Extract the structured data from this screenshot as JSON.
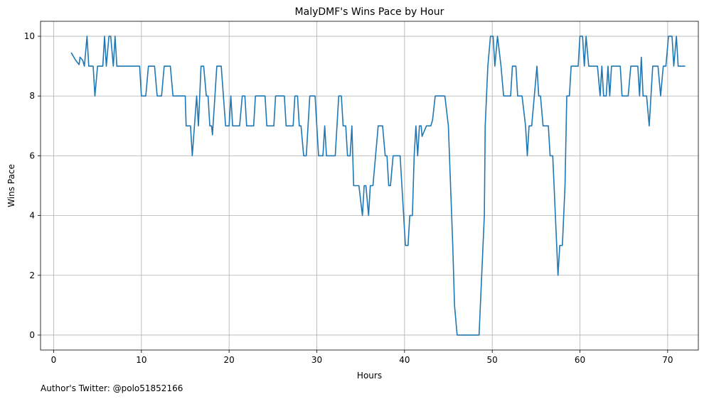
{
  "chart_data": {
    "type": "line",
    "title": "MalyDMF's Wins Pace by Hour",
    "xlabel": "Hours",
    "ylabel": "Wins Pace",
    "xlim": [
      -1.5,
      73.5
    ],
    "ylim": [
      -0.5,
      10.5
    ],
    "xticks": [
      0,
      10,
      20,
      30,
      40,
      50,
      60,
      70
    ],
    "yticks": [
      0,
      2,
      4,
      6,
      8,
      10
    ],
    "grid": true,
    "series": [
      {
        "color": "#1f77b4",
        "points": [
          [
            2.0,
            9.45
          ],
          [
            2.5,
            9.2
          ],
          [
            2.9,
            9.05
          ],
          [
            3.0,
            9.3
          ],
          [
            3.3,
            9.2
          ],
          [
            3.5,
            9.0
          ],
          [
            3.8,
            10.0
          ],
          [
            4.0,
            9.0
          ],
          [
            4.5,
            9.0
          ],
          [
            4.7,
            8.0
          ],
          [
            5.0,
            9.0
          ],
          [
            5.6,
            9.0
          ],
          [
            5.8,
            10.0
          ],
          [
            6.0,
            9.0
          ],
          [
            6.3,
            10.0
          ],
          [
            6.5,
            10.0
          ],
          [
            6.8,
            9.0
          ],
          [
            7.0,
            10.0
          ],
          [
            7.2,
            9.0
          ],
          [
            9.8,
            9.0
          ],
          [
            10.0,
            8.0
          ],
          [
            10.5,
            8.0
          ],
          [
            10.8,
            9.0
          ],
          [
            11.5,
            9.0
          ],
          [
            11.8,
            8.0
          ],
          [
            12.3,
            8.0
          ],
          [
            12.6,
            9.0
          ],
          [
            13.3,
            9.0
          ],
          [
            13.6,
            8.0
          ],
          [
            15.0,
            8.0
          ],
          [
            15.1,
            7.0
          ],
          [
            15.6,
            7.0
          ],
          [
            15.8,
            6.0
          ],
          [
            16.3,
            8.0
          ],
          [
            16.5,
            7.0
          ],
          [
            16.8,
            9.0
          ],
          [
            17.1,
            9.0
          ],
          [
            17.4,
            8.0
          ],
          [
            17.6,
            8.0
          ],
          [
            17.8,
            7.0
          ],
          [
            18.0,
            7.0
          ],
          [
            18.1,
            6.7
          ],
          [
            18.6,
            9.0
          ],
          [
            19.1,
            9.0
          ],
          [
            19.6,
            7.0
          ],
          [
            20.0,
            7.0
          ],
          [
            20.2,
            8.0
          ],
          [
            20.4,
            7.0
          ],
          [
            21.2,
            7.0
          ],
          [
            21.5,
            8.0
          ],
          [
            21.8,
            8.0
          ],
          [
            22.0,
            7.0
          ],
          [
            22.8,
            7.0
          ],
          [
            23.0,
            8.0
          ],
          [
            24.1,
            8.0
          ],
          [
            24.3,
            7.0
          ],
          [
            25.1,
            7.0
          ],
          [
            25.3,
            8.0
          ],
          [
            26.3,
            8.0
          ],
          [
            26.5,
            7.0
          ],
          [
            27.3,
            7.0
          ],
          [
            27.5,
            8.0
          ],
          [
            27.8,
            8.0
          ],
          [
            28.0,
            7.0
          ],
          [
            28.2,
            7.0
          ],
          [
            28.5,
            6.0
          ],
          [
            28.8,
            6.0
          ],
          [
            29.2,
            8.0
          ],
          [
            29.8,
            8.0
          ],
          [
            30.2,
            6.0
          ],
          [
            30.7,
            6.0
          ],
          [
            30.9,
            7.0
          ],
          [
            31.1,
            6.0
          ],
          [
            32.1,
            6.0
          ],
          [
            32.5,
            8.0
          ],
          [
            32.8,
            8.0
          ],
          [
            33.0,
            7.0
          ],
          [
            33.3,
            7.0
          ],
          [
            33.5,
            6.0
          ],
          [
            33.8,
            6.0
          ],
          [
            34.0,
            7.0
          ],
          [
            34.2,
            5.0
          ],
          [
            34.8,
            5.0
          ],
          [
            35.2,
            4.0
          ],
          [
            35.4,
            5.0
          ],
          [
            35.6,
            5.0
          ],
          [
            35.9,
            4.0
          ],
          [
            36.1,
            5.0
          ],
          [
            36.4,
            5.0
          ],
          [
            37.0,
            7.0
          ],
          [
            37.5,
            7.0
          ],
          [
            37.8,
            6.0
          ],
          [
            38.0,
            6.0
          ],
          [
            38.2,
            5.0
          ],
          [
            38.4,
            5.0
          ],
          [
            38.7,
            6.0
          ],
          [
            39.5,
            6.0
          ],
          [
            39.9,
            4.0
          ],
          [
            40.1,
            3.0
          ],
          [
            40.4,
            3.0
          ],
          [
            40.6,
            4.0
          ],
          [
            40.9,
            4.0
          ],
          [
            41.1,
            6.0
          ],
          [
            41.3,
            7.0
          ],
          [
            41.5,
            6.0
          ],
          [
            41.7,
            7.0
          ],
          [
            41.9,
            7.0
          ],
          [
            42.0,
            6.65
          ],
          [
            42.5,
            7.0
          ],
          [
            43.0,
            7.0
          ],
          [
            43.2,
            7.2
          ],
          [
            43.5,
            8.0
          ],
          [
            44.6,
            8.0
          ],
          [
            45.0,
            7.0
          ],
          [
            45.5,
            3.0
          ],
          [
            45.7,
            1.0
          ],
          [
            46.0,
            0.0
          ],
          [
            48.5,
            0.0
          ],
          [
            48.8,
            2.0
          ],
          [
            49.1,
            4.0
          ],
          [
            49.2,
            7.0
          ],
          [
            49.5,
            9.0
          ],
          [
            49.8,
            10.0
          ],
          [
            50.1,
            10.0
          ],
          [
            50.3,
            9.0
          ],
          [
            50.6,
            10.0
          ],
          [
            51.0,
            9.0
          ],
          [
            51.3,
            8.0
          ],
          [
            52.1,
            8.0
          ],
          [
            52.3,
            9.0
          ],
          [
            52.7,
            9.0
          ],
          [
            52.9,
            8.0
          ],
          [
            53.4,
            8.0
          ],
          [
            53.8,
            7.0
          ],
          [
            54.0,
            6.0
          ],
          [
            54.2,
            7.0
          ],
          [
            54.5,
            7.0
          ],
          [
            54.8,
            8.0
          ],
          [
            55.1,
            9.0
          ],
          [
            55.3,
            8.0
          ],
          [
            55.5,
            8.0
          ],
          [
            55.8,
            7.0
          ],
          [
            56.4,
            7.0
          ],
          [
            56.6,
            6.0
          ],
          [
            56.9,
            6.0
          ],
          [
            57.2,
            4.0
          ],
          [
            57.5,
            2.0
          ],
          [
            57.7,
            3.0
          ],
          [
            58.0,
            3.0
          ],
          [
            58.3,
            5.0
          ],
          [
            58.5,
            8.0
          ],
          [
            58.8,
            8.0
          ],
          [
            59.0,
            9.0
          ],
          [
            59.8,
            9.0
          ],
          [
            60.0,
            10.0
          ],
          [
            60.3,
            10.0
          ],
          [
            60.5,
            9.0
          ],
          [
            60.7,
            10.0
          ],
          [
            61.0,
            9.0
          ],
          [
            62.0,
            9.0
          ],
          [
            62.3,
            8.0
          ],
          [
            62.5,
            9.0
          ],
          [
            62.7,
            8.0
          ],
          [
            63.0,
            8.0
          ],
          [
            63.2,
            9.0
          ],
          [
            63.4,
            8.0
          ],
          [
            63.6,
            9.0
          ],
          [
            64.6,
            9.0
          ],
          [
            64.8,
            8.0
          ],
          [
            65.5,
            8.0
          ],
          [
            65.8,
            9.0
          ],
          [
            66.6,
            9.0
          ],
          [
            66.8,
            8.0
          ],
          [
            67.0,
            9.3
          ],
          [
            67.2,
            8.0
          ],
          [
            67.6,
            8.0
          ],
          [
            67.9,
            7.0
          ],
          [
            68.3,
            9.0
          ],
          [
            68.9,
            9.0
          ],
          [
            69.2,
            8.0
          ],
          [
            69.5,
            9.0
          ],
          [
            69.8,
            9.0
          ],
          [
            70.1,
            10.0
          ],
          [
            70.5,
            10.0
          ],
          [
            70.7,
            9.0
          ],
          [
            71.0,
            10.0
          ],
          [
            71.2,
            9.0
          ],
          [
            72.0,
            9.0
          ]
        ]
      }
    ]
  },
  "footnote": "Author's Twitter: @polo51852166"
}
